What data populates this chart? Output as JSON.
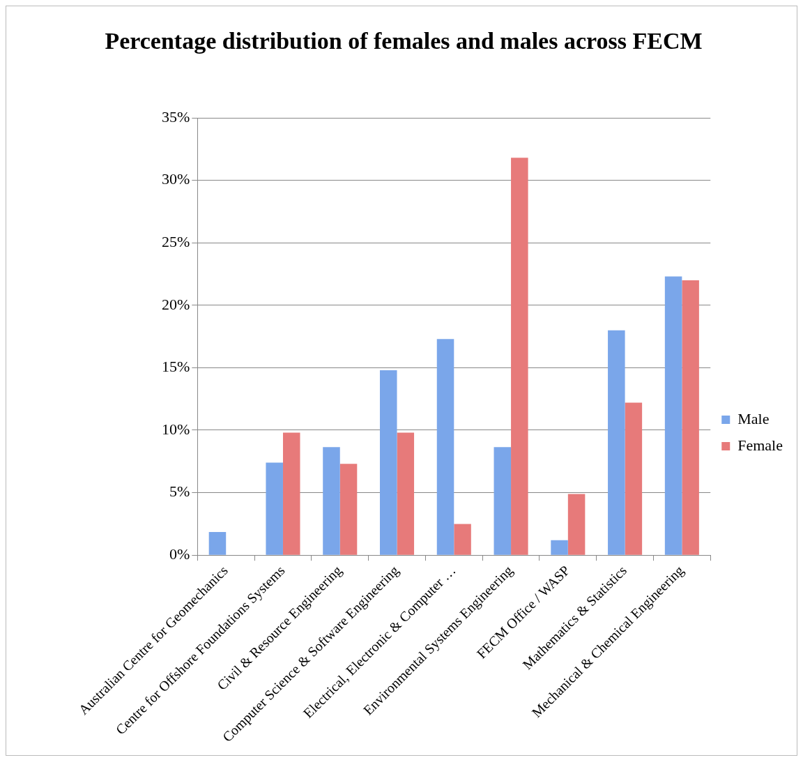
{
  "chart_data": {
    "type": "bar",
    "title": "Percentage distribution of females and males across FECM",
    "categories": [
      "Australian Centre for Geomechanics",
      "Centre for Offshore Foundations Systems",
      "Civil & Resource Engineering",
      "Computer Science & Software Engineering",
      "Electrical, Electronic & Computer …",
      "Environmental Systems Engineering",
      "FECM Office / WASP",
      "Mathematics & Statistics",
      "Mechanical & Chemical Engineering"
    ],
    "series": [
      {
        "name": "Male",
        "color": "#7aa6ea",
        "values": [
          1.85,
          7.4,
          8.65,
          14.8,
          17.3,
          8.65,
          1.2,
          18.0,
          22.3
        ]
      },
      {
        "name": "Female",
        "color": "#e77a7a",
        "values": [
          0,
          9.8,
          7.3,
          9.8,
          2.5,
          31.8,
          4.9,
          12.2,
          22.0
        ]
      }
    ],
    "ylim": [
      0,
      35
    ],
    "yticks": [
      {
        "value": 0,
        "label": "0%"
      },
      {
        "value": 5,
        "label": "5%"
      },
      {
        "value": 10,
        "label": "10%"
      },
      {
        "value": 15,
        "label": "15%"
      },
      {
        "value": 20,
        "label": "20%"
      },
      {
        "value": 25,
        "label": "25%"
      },
      {
        "value": 30,
        "label": "30%"
      },
      {
        "value": 35,
        "label": "35%"
      }
    ],
    "grid": "y",
    "legend": "right"
  }
}
